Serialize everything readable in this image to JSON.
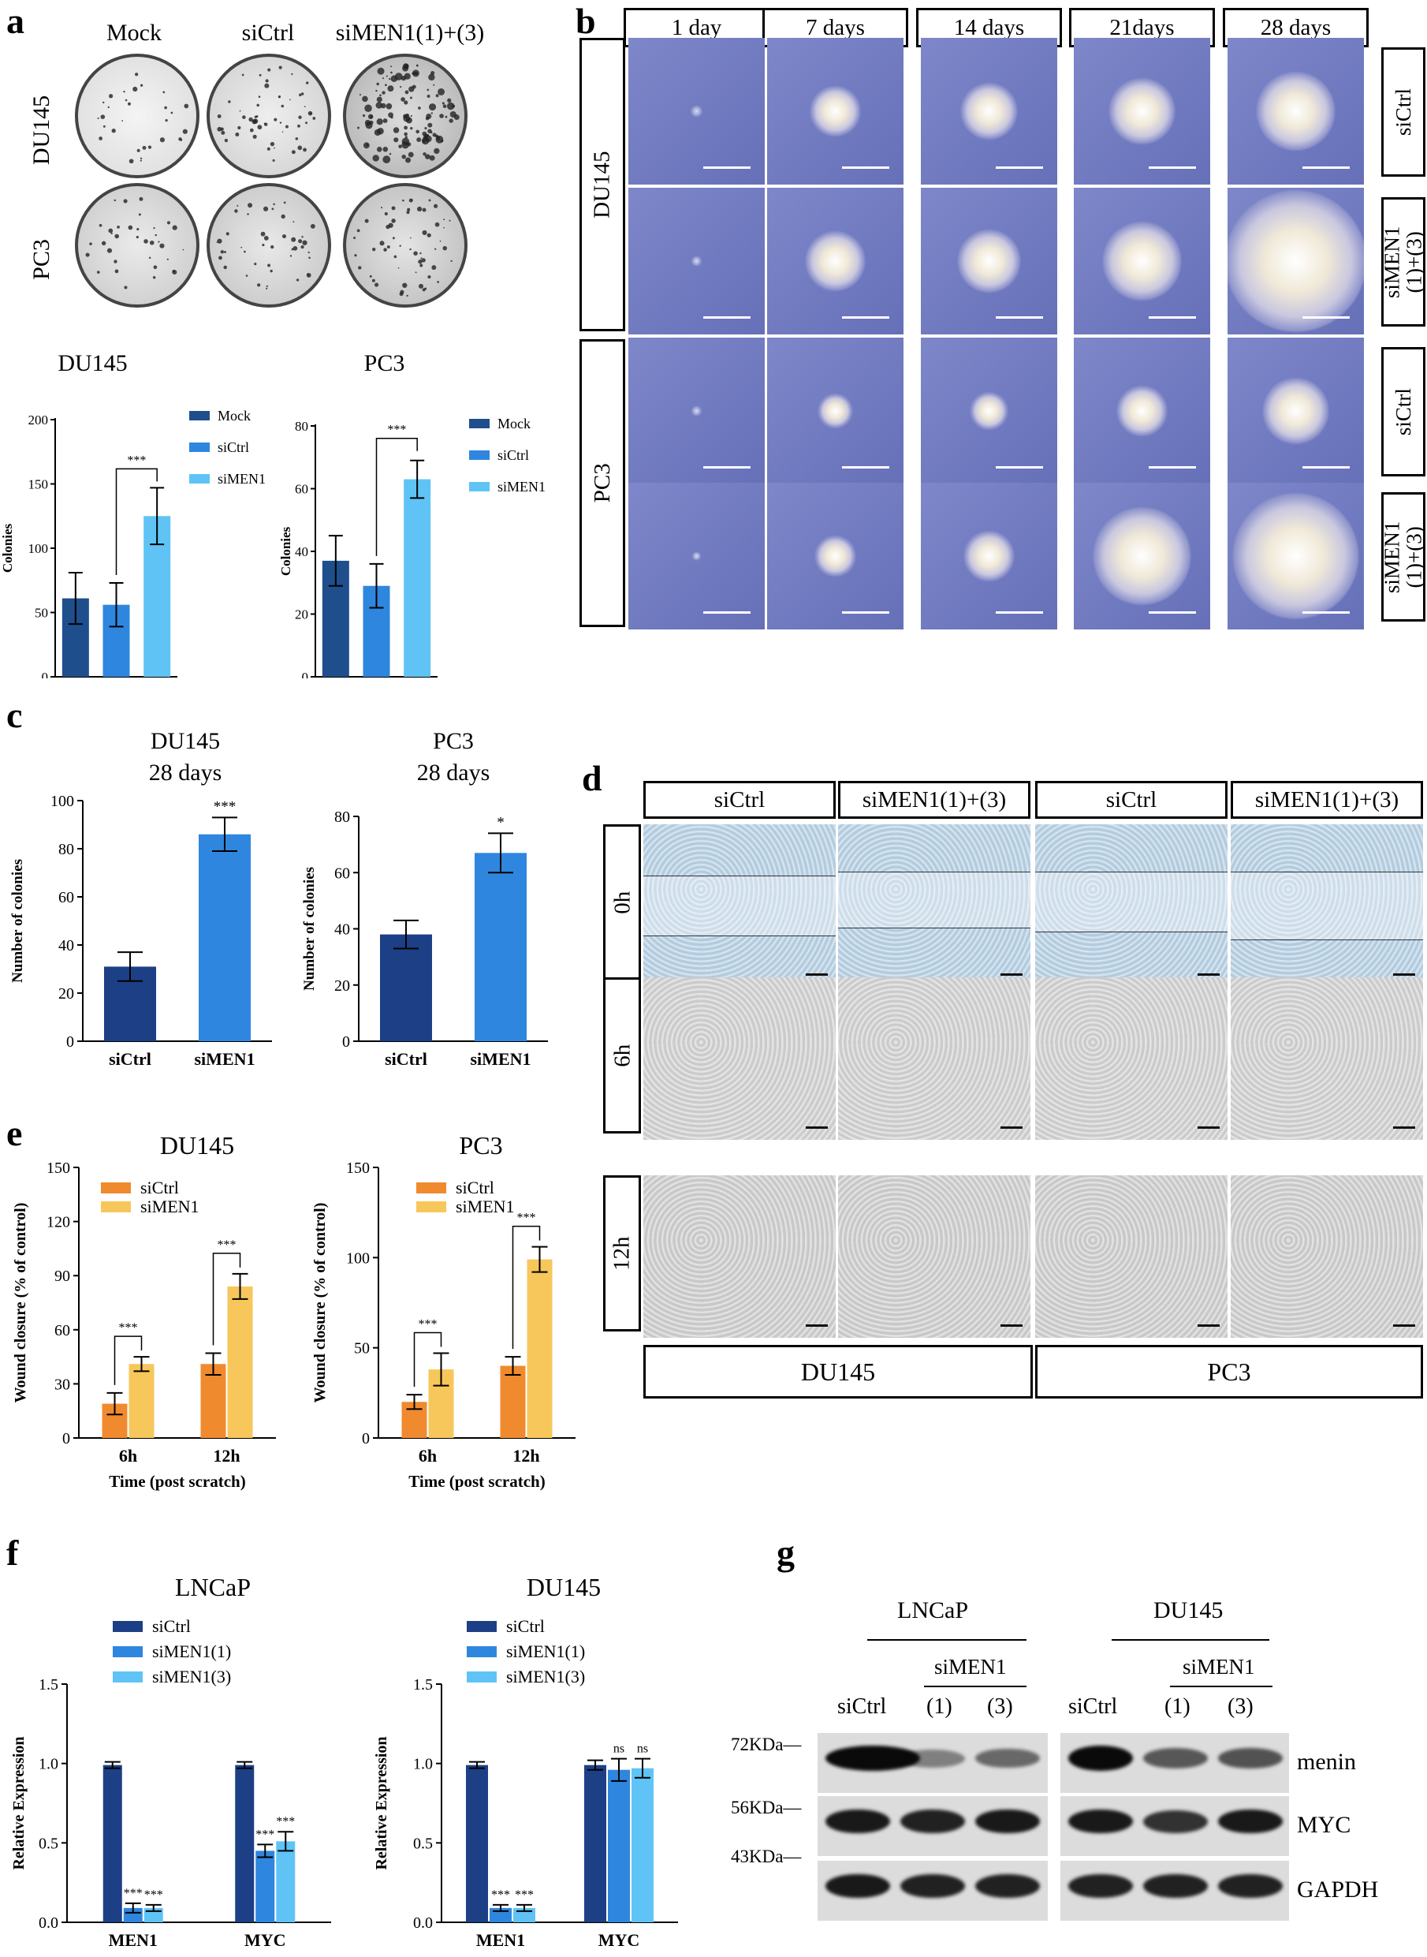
{
  "panels": {
    "a": "a",
    "b": "b",
    "c": "c",
    "d": "d",
    "e": "e",
    "f": "f",
    "g": "g"
  },
  "panel_a": {
    "cols": [
      "Mock",
      "siCtrl",
      "siMEN1(1)+(3)"
    ],
    "rows": [
      "DU145",
      "PC3"
    ]
  },
  "panel_b": {
    "cols": [
      "1 day",
      "7 days",
      "14 days",
      "21days",
      "28 days"
    ],
    "cell_lines": [
      "DU145",
      "PC3"
    ],
    "right_labels": [
      "siCtrl",
      "siMEN1 (1)+(3)",
      "siCtrl",
      "siMEN1 (1)+(3)"
    ]
  },
  "panel_c": {
    "titles": [
      "DU145\n28 days",
      "PC3\n28 days"
    ]
  },
  "panel_d": {
    "cols": [
      "siCtrl",
      "siMEN1(1)+(3)",
      "siCtrl",
      "siMEN1(1)+(3)"
    ],
    "rows": [
      "0h",
      "6h",
      "12h"
    ],
    "bottom": [
      "DU145",
      "PC3"
    ]
  },
  "panel_g": {
    "groups": [
      "LNCaP",
      "DU145"
    ],
    "sub": "siMEN1",
    "lanes": [
      "siCtrl",
      "(1)",
      "(3)"
    ],
    "markers": [
      "72KDa",
      "56KDa",
      "43KDa"
    ],
    "proteins": [
      "menin",
      "MYC",
      "GAPDH"
    ]
  },
  "chart_data": [
    {
      "id": "a-du145",
      "type": "bar",
      "title": "DU145",
      "ylabel": "Colonies",
      "ylim": [
        0,
        200
      ],
      "yticks": [
        0,
        50,
        100,
        150,
        200
      ],
      "categories": [
        "Mock",
        "siCtrl",
        "siMEN1"
      ],
      "values": [
        61,
        56,
        125
      ],
      "errors": [
        20,
        17,
        22
      ],
      "colors": [
        "#1f4e8c",
        "#2f86de",
        "#5fc4f5"
      ],
      "legend": [
        "Mock",
        "siCtrl",
        "siMEN1"
      ],
      "sig": [
        {
          "from": 1,
          "to": 2,
          "label": "***"
        }
      ]
    },
    {
      "id": "a-pc3",
      "type": "bar",
      "title": "PC3",
      "ylabel": "Colonies",
      "ylim": [
        0,
        80
      ],
      "yticks": [
        0,
        20,
        40,
        60,
        80
      ],
      "categories": [
        "Mock",
        "siCtrl",
        "siMEN1"
      ],
      "values": [
        37,
        29,
        63
      ],
      "errors": [
        8,
        7,
        6
      ],
      "colors": [
        "#1f4e8c",
        "#2f86de",
        "#5fc4f5"
      ],
      "legend": [
        "Mock",
        "siCtrl",
        "siMEN1"
      ],
      "sig": [
        {
          "from": 1,
          "to": 2,
          "label": "***"
        }
      ]
    },
    {
      "id": "c-du145",
      "type": "bar",
      "ylabel": "Number of colonies",
      "ylim": [
        0,
        100
      ],
      "yticks": [
        0,
        20,
        40,
        60,
        80,
        100
      ],
      "categories": [
        "siCtrl",
        "siMEN1"
      ],
      "values": [
        31,
        86
      ],
      "errors": [
        6,
        7
      ],
      "colors": [
        "#1c3f86",
        "#2f86de"
      ],
      "marks": [
        "",
        "***"
      ]
    },
    {
      "id": "c-pc3",
      "type": "bar",
      "ylabel": "Number of colonies",
      "ylim": [
        0,
        80
      ],
      "yticks": [
        0,
        20,
        40,
        60,
        80
      ],
      "categories": [
        "siCtrl",
        "siMEN1"
      ],
      "values": [
        38,
        67
      ],
      "errors": [
        5,
        7
      ],
      "colors": [
        "#1c3f86",
        "#2f86de"
      ],
      "marks": [
        "",
        "*"
      ]
    },
    {
      "id": "e-du145",
      "type": "bar",
      "title": "DU145",
      "xlabel": "Time (post scratch)",
      "ylabel": "Wound closure (% of control)",
      "ylim": [
        0,
        150
      ],
      "yticks": [
        0,
        30,
        60,
        90,
        120,
        150
      ],
      "categories": [
        "6h",
        "12h"
      ],
      "series": [
        {
          "name": "siCtrl",
          "values": [
            19,
            41
          ],
          "errors": [
            6,
            6
          ],
          "color": "#f08a2e"
        },
        {
          "name": "siMEN1",
          "values": [
            41,
            84
          ],
          "errors": [
            4,
            7
          ],
          "color": "#f7c75b"
        }
      ],
      "sig": [
        "***",
        "***"
      ]
    },
    {
      "id": "e-pc3",
      "type": "bar",
      "title": "PC3",
      "xlabel": "Time (post scratch)",
      "ylabel": "Wound closure (% of control)",
      "ylim": [
        0,
        150
      ],
      "yticks": [
        0,
        50,
        100,
        150
      ],
      "categories": [
        "6h",
        "12h"
      ],
      "series": [
        {
          "name": "siCtrl",
          "values": [
            20,
            40
          ],
          "errors": [
            4,
            5
          ],
          "color": "#f08a2e"
        },
        {
          "name": "siMEN1",
          "values": [
            38,
            99
          ],
          "errors": [
            9,
            7
          ],
          "color": "#f7c75b"
        }
      ],
      "sig": [
        "***",
        "***"
      ]
    },
    {
      "id": "f-lncap",
      "type": "bar",
      "title": "LNCaP",
      "ylabel": "Relative Expression",
      "ylim": [
        0,
        1.5
      ],
      "yticks": [
        "0.0",
        "0.5",
        "1.0",
        "1.5"
      ],
      "categories": [
        "MEN1",
        "MYC"
      ],
      "series": [
        {
          "name": "siCtrl",
          "values": [
            0.99,
            0.99
          ],
          "errors": [
            0.02,
            0.02
          ],
          "color": "#1c3f86"
        },
        {
          "name": "siMEN1(1)",
          "values": [
            0.09,
            0.45
          ],
          "errors": [
            0.03,
            0.04
          ],
          "color": "#2f86de"
        },
        {
          "name": "siMEN1(3)",
          "values": [
            0.09,
            0.51
          ],
          "errors": [
            0.02,
            0.06
          ],
          "color": "#5fc4f5"
        }
      ],
      "marks": [
        [
          "",
          "***",
          "***"
        ],
        [
          "",
          "***",
          "***"
        ]
      ]
    },
    {
      "id": "f-du145",
      "type": "bar",
      "title": "DU145",
      "ylabel": "Relative Expression",
      "ylim": [
        0,
        1.5
      ],
      "yticks": [
        "0.0",
        "0.5",
        "1.0",
        "1.5"
      ],
      "categories": [
        "MEN1",
        "MYC"
      ],
      "series": [
        {
          "name": "siCtrl",
          "values": [
            0.99,
            0.99
          ],
          "errors": [
            0.02,
            0.03
          ],
          "color": "#1c3f86"
        },
        {
          "name": "siMEN1(1)",
          "values": [
            0.09,
            0.96
          ],
          "errors": [
            0.02,
            0.07
          ],
          "color": "#2f86de"
        },
        {
          "name": "siMEN1(3)",
          "values": [
            0.09,
            0.97
          ],
          "errors": [
            0.02,
            0.06
          ],
          "color": "#5fc4f5"
        }
      ],
      "marks": [
        [
          "",
          "***",
          "***"
        ],
        [
          "",
          "ns",
          "ns"
        ]
      ]
    }
  ]
}
